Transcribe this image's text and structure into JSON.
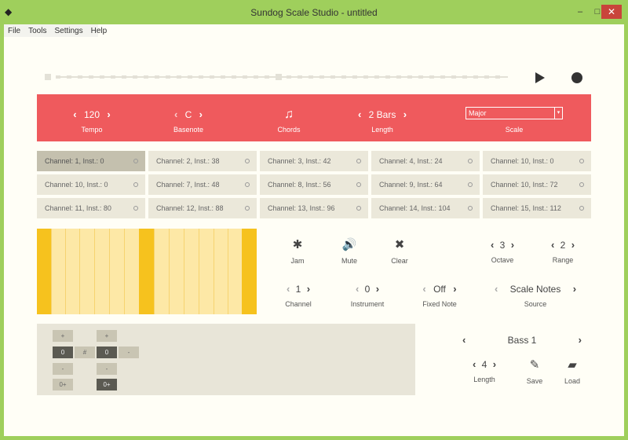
{
  "window": {
    "title": "Sundog Scale Studio - untitled",
    "min_label": "–",
    "max_label": "□",
    "close_label": "✕"
  },
  "menu": [
    "File",
    "Tools",
    "Settings",
    "Help"
  ],
  "transport": {
    "play": "play-icon",
    "record": "record-icon"
  },
  "top": {
    "tempo": {
      "value": "120",
      "label": "Tempo"
    },
    "basenote": {
      "value": "C",
      "label": "Basenote"
    },
    "chords": {
      "label": "Chords",
      "icon": "music-note-icon"
    },
    "length": {
      "value": "2 Bars",
      "label": "Length"
    },
    "scale": {
      "value": "Major",
      "label": "Scale"
    },
    "colors": {
      "panel": "#ef5a5d"
    }
  },
  "channels": [
    "Channel: 1, Inst.: 0",
    "Channel: 2, Inst.: 38",
    "Channel: 3, Inst.: 42",
    "Channel: 4, Inst.: 24",
    "Channel: 10, Inst.: 0",
    "Channel: 10, Inst.: 0",
    "Channel: 7, Inst.: 48",
    "Channel: 8, Inst.: 56",
    "Channel: 9, Inst.: 64",
    "Channel: 10, Inst.: 72",
    "Channel: 11, Inst.: 80",
    "Channel: 12, Inst.: 88",
    "Channel: 13, Inst.: 96",
    "Channel: 14, Inst.: 104",
    "Channel: 15, Inst.: 112"
  ],
  "actions": {
    "jam": "Jam",
    "mute": "Mute",
    "clear": "Clear"
  },
  "octave": {
    "value": "3",
    "label": "Octave"
  },
  "range": {
    "value": "2",
    "label": "Range"
  },
  "channel": {
    "value": "1",
    "label": "Channel"
  },
  "instrument": {
    "value": "0",
    "label": "Instrument"
  },
  "fixed_note": {
    "value": "Off",
    "label": "Fixed Note"
  },
  "source": {
    "value": "Scale Notes",
    "label": "Source"
  },
  "preset": {
    "name": "Bass 1",
    "length_value": "4",
    "length_label": "Length",
    "save": "Save",
    "load": "Load"
  },
  "pad": {
    "plus": "+",
    "minus": "-",
    "val1": "0",
    "val2": "0",
    "hash": "#",
    "zero_plus": "0+"
  }
}
